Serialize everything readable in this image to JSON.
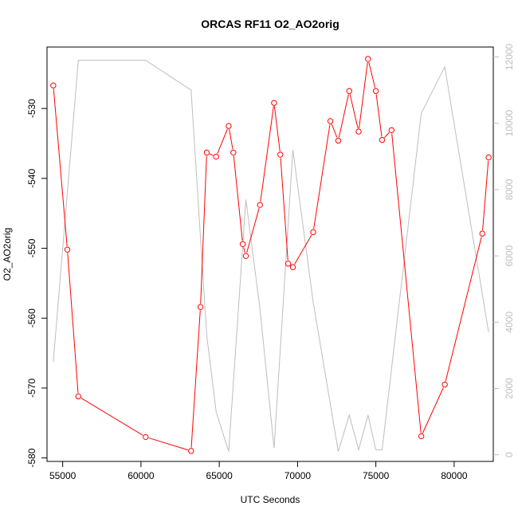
{
  "chart_data": {
    "type": "line",
    "title": "ORCAS RF11 O2_AO2orig",
    "xlabel": "UTC Seconds",
    "ylabel": "O2_AO2orig",
    "xlim": [
      54000,
      82500
    ],
    "ylim": [
      -580.5,
      -521.2
    ],
    "y2lim": [
      -200,
      12300
    ],
    "xticks": [
      55000,
      60000,
      65000,
      70000,
      75000,
      80000
    ],
    "yticks": [
      -580,
      -570,
      -560,
      -550,
      -540,
      -530
    ],
    "y2ticks": [
      0,
      2000,
      4000,
      6000,
      8000,
      10000,
      12000
    ],
    "grid": false,
    "legend": "none",
    "series": [
      {
        "axis": "left",
        "style": "line-points",
        "color": "#ff0000",
        "x": [
          54400,
          55300,
          56000,
          60300,
          63200,
          63800,
          64200,
          64800,
          65600,
          65900,
          66500,
          66700,
          67600,
          68500,
          68900,
          69400,
          69700,
          71000,
          72100,
          72600,
          73300,
          73900,
          74500,
          75000,
          75400,
          76000,
          77900,
          79400,
          81800,
          82200
        ],
        "y": [
          -526.7,
          -550.2,
          -571.2,
          -577.0,
          -579.0,
          -558.4,
          -536.3,
          -536.9,
          -532.5,
          -536.3,
          -549.4,
          -551.1,
          -543.8,
          -529.2,
          -536.6,
          -552.2,
          -552.7,
          -547.7,
          -531.8,
          -534.6,
          -527.5,
          -533.3,
          -522.9,
          -527.5,
          -534.5,
          -533.1,
          -576.9,
          -569.5,
          -547.9,
          -537.0
        ]
      },
      {
        "axis": "right",
        "style": "line",
        "color": "#bebebe",
        "x": [
          54400,
          56000,
          58000,
          60300,
          63200,
          64200,
          64800,
          65600,
          66700,
          67600,
          68500,
          69700,
          71000,
          72600,
          73300,
          73900,
          74500,
          75000,
          75400,
          77900,
          79400,
          82200
        ],
        "y": [
          2800,
          11900,
          11900,
          11900,
          11000,
          3600,
          1300,
          100,
          7700,
          4400,
          200,
          9200,
          4600,
          100,
          1200,
          150,
          1200,
          150,
          150,
          10300,
          11700,
          3700
        ]
      }
    ]
  }
}
